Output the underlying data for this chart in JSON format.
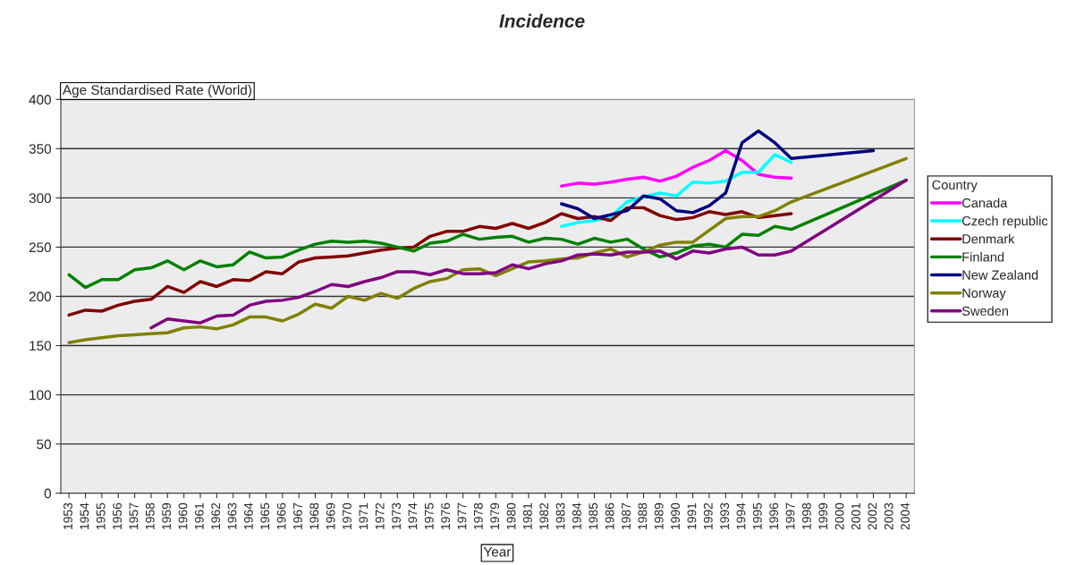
{
  "chart_data": {
    "type": "line",
    "title": "Incidence",
    "ylabel": "Age Standardised Rate (World)",
    "xlabel": "Year",
    "legend_title": "Country",
    "categories": [
      "1953",
      "1954",
      "1955",
      "1956",
      "1957",
      "1958",
      "1959",
      "1960",
      "1961",
      "1962",
      "1963",
      "1964",
      "1965",
      "1966",
      "1967",
      "1968",
      "1969",
      "1970",
      "1971",
      "1972",
      "1973",
      "1974",
      "1975",
      "1976",
      "1977",
      "1978",
      "1979",
      "1980",
      "1981",
      "1982",
      "1983",
      "1984",
      "1985",
      "1986",
      "1987",
      "1988",
      "1989",
      "1990",
      "1991",
      "1992",
      "1993",
      "1994",
      "1995",
      "1996",
      "1997",
      "1998",
      "1999",
      "2000",
      "2001",
      "2002",
      "2003",
      "2004"
    ],
    "series": [
      {
        "name": "Canada",
        "color": "#ff00ff",
        "values": [
          null,
          null,
          null,
          null,
          null,
          null,
          null,
          null,
          null,
          null,
          null,
          null,
          null,
          null,
          null,
          null,
          null,
          null,
          null,
          null,
          null,
          null,
          null,
          null,
          null,
          null,
          null,
          null,
          null,
          null,
          312,
          315,
          314,
          316,
          319,
          321,
          317,
          322,
          331,
          338,
          348,
          338,
          324,
          321,
          320,
          null,
          null,
          null,
          null,
          null,
          null,
          null
        ]
      },
      {
        "name": "Czech republic",
        "color": "#00ffff",
        "values": [
          null,
          null,
          null,
          null,
          null,
          null,
          null,
          null,
          null,
          null,
          null,
          null,
          null,
          null,
          null,
          null,
          null,
          null,
          null,
          null,
          null,
          null,
          null,
          null,
          null,
          null,
          null,
          null,
          null,
          null,
          271,
          275,
          277,
          281,
          296,
          301,
          305,
          302,
          316,
          315,
          317,
          326,
          326,
          344,
          336,
          null,
          null,
          null,
          null,
          null,
          null,
          null
        ]
      },
      {
        "name": "Denmark",
        "color": "#800000",
        "values": [
          181,
          186,
          185,
          191,
          195,
          197,
          210,
          204,
          215,
          210,
          217,
          216,
          225,
          223,
          235,
          239,
          240,
          241,
          244,
          247,
          249,
          250,
          261,
          266,
          266,
          271,
          269,
          274,
          269,
          275,
          284,
          279,
          281,
          277,
          290,
          290,
          282,
          278,
          280,
          286,
          283,
          286,
          280,
          282,
          284,
          null,
          null,
          null,
          null,
          null,
          null,
          null
        ]
      },
      {
        "name": "Finland",
        "color": "#008000",
        "values": [
          222,
          209,
          217,
          217,
          227,
          229,
          236,
          227,
          236,
          230,
          232,
          245,
          239,
          240,
          247,
          253,
          256,
          255,
          256,
          254,
          250,
          246,
          254,
          256,
          263,
          258,
          260,
          261,
          255,
          259,
          258,
          253,
          259,
          255,
          258,
          248,
          240,
          244,
          251,
          253,
          250,
          263,
          262,
          271,
          268,
          null,
          null,
          null,
          null,
          null,
          null,
          318
        ]
      },
      {
        "name": "New Zealand",
        "color": "#000080",
        "values": [
          null,
          null,
          null,
          null,
          null,
          null,
          null,
          null,
          null,
          null,
          null,
          null,
          null,
          null,
          null,
          null,
          null,
          null,
          null,
          null,
          null,
          null,
          null,
          null,
          null,
          null,
          null,
          null,
          null,
          null,
          294,
          289,
          279,
          283,
          287,
          302,
          299,
          287,
          285,
          292,
          305,
          356,
          368,
          356,
          340,
          null,
          null,
          null,
          null,
          348,
          null,
          null
        ]
      },
      {
        "name": "Norway",
        "color": "#808000",
        "values": [
          153,
          156,
          158,
          160,
          161,
          162,
          163,
          168,
          169,
          167,
          171,
          179,
          179,
          175,
          182,
          192,
          188,
          200,
          196,
          203,
          198,
          208,
          215,
          218,
          227,
          228,
          221,
          228,
          235,
          236,
          238,
          239,
          244,
          248,
          240,
          245,
          252,
          255,
          255,
          267,
          279,
          281,
          281,
          287,
          296,
          null,
          null,
          null,
          null,
          null,
          null,
          340
        ]
      },
      {
        "name": "Sweden",
        "color": "#800080",
        "values": [
          null,
          null,
          null,
          null,
          null,
          168,
          177,
          175,
          173,
          180,
          181,
          191,
          195,
          196,
          199,
          205,
          212,
          210,
          215,
          219,
          225,
          225,
          222,
          227,
          223,
          223,
          224,
          232,
          228,
          233,
          236,
          242,
          243,
          242,
          245,
          245,
          246,
          238,
          246,
          244,
          248,
          250,
          242,
          242,
          246,
          null,
          null,
          null,
          null,
          null,
          null,
          318
        ]
      }
    ],
    "ylim": [
      0,
      400
    ],
    "yticks": [
      0,
      50,
      100,
      150,
      200,
      250,
      300,
      350,
      400
    ],
    "grid": "y",
    "legend": "right"
  }
}
